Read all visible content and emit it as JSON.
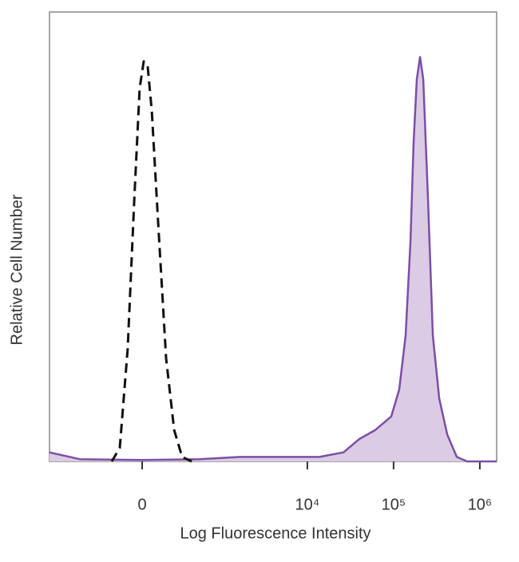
{
  "chart_data": {
    "type": "histogram-overlay",
    "x_label": "Log Fluorescence Intensity",
    "y_label": "Relative Cell Number",
    "xscale": "asinh",
    "xscale_cofactor": 243,
    "xlim": [
      -1431,
      1567000
    ],
    "ylim": [
      0,
      100
    ],
    "xticks": [
      0,
      {
        "value": 10000,
        "label": "10⁴"
      },
      {
        "value": 100000,
        "label": "10⁵"
      },
      {
        "value": 1000000,
        "label": "10⁶"
      }
    ],
    "series": [
      {
        "color": "#111111",
        "dashed": true,
        "x": [
          -219,
          -154,
          -96,
          -52,
          -16,
          10,
          36,
          63,
          107,
          166,
          234,
          312,
          424
        ],
        "values": [
          0,
          3,
          25,
          58,
          83,
          89,
          88,
          78,
          53,
          23,
          7,
          1,
          0
        ]
      },
      {
        "color": "#7b4fa6",
        "fill": "#dccbe4",
        "x": [
          -1431,
          -617,
          0,
          537,
          1628,
          4755,
          13800,
          26200,
          40100,
          61500,
          94000,
          116400,
          138000,
          157000,
          170800,
          186000,
          202700,
          220900,
          251000,
          285300,
          338300,
          418500,
          540700,
          713200,
          1567000
        ],
        "values": [
          2,
          0.5,
          0.3,
          0.5,
          1,
          1,
          1,
          2,
          5,
          7,
          10,
          16,
          28,
          49,
          71,
          85,
          90,
          85,
          58,
          28,
          14,
          6,
          1,
          0,
          0
        ]
      }
    ]
  }
}
